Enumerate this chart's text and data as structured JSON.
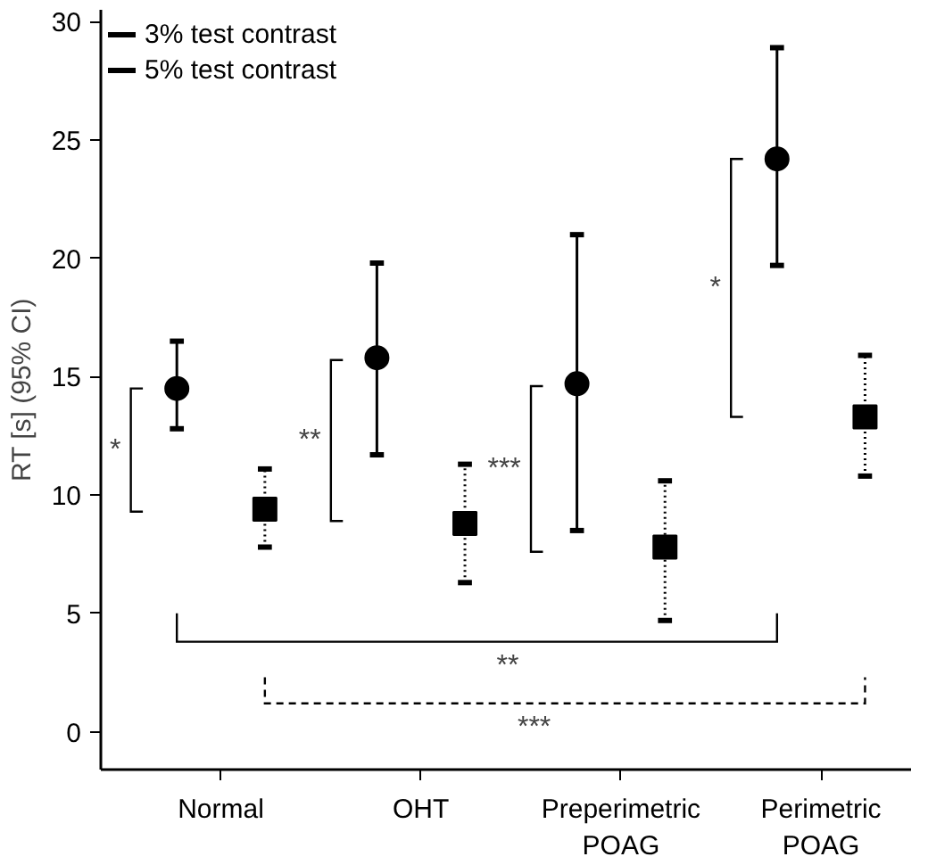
{
  "chart_data": {
    "type": "scatter",
    "ylabel": "RT [s] (95% CI)",
    "categories": [
      "Normal",
      "OHT",
      "Preperimetric\nPOAG",
      "Perimetric\nPOAG"
    ],
    "series": [
      {
        "name": "3% test contrast",
        "color": "#000000",
        "marker": "circle",
        "line_style": "solid",
        "values": [
          14.5,
          15.8,
          14.7,
          24.2
        ],
        "errors": [
          [
            12.8,
            16.5
          ],
          [
            11.7,
            19.8
          ],
          [
            8.5,
            21.0
          ],
          [
            19.7,
            28.9
          ]
        ]
      },
      {
        "name": "5% test contrast",
        "color": "#000000",
        "marker": "square",
        "line_style": "dotted",
        "values": [
          9.4,
          8.8,
          7.8,
          13.3
        ],
        "errors": [
          [
            7.8,
            11.1
          ],
          [
            6.3,
            11.3
          ],
          [
            4.7,
            10.6
          ],
          [
            10.8,
            15.9
          ]
        ]
      }
    ],
    "ylim": [
      -1.6,
      30.5
    ],
    "yticks": [
      0,
      5,
      10,
      15,
      20,
      25,
      30
    ],
    "grid": false,
    "legend": "top left",
    "annotations": [
      "*",
      "**",
      "***",
      "*",
      "**",
      "***"
    ]
  }
}
